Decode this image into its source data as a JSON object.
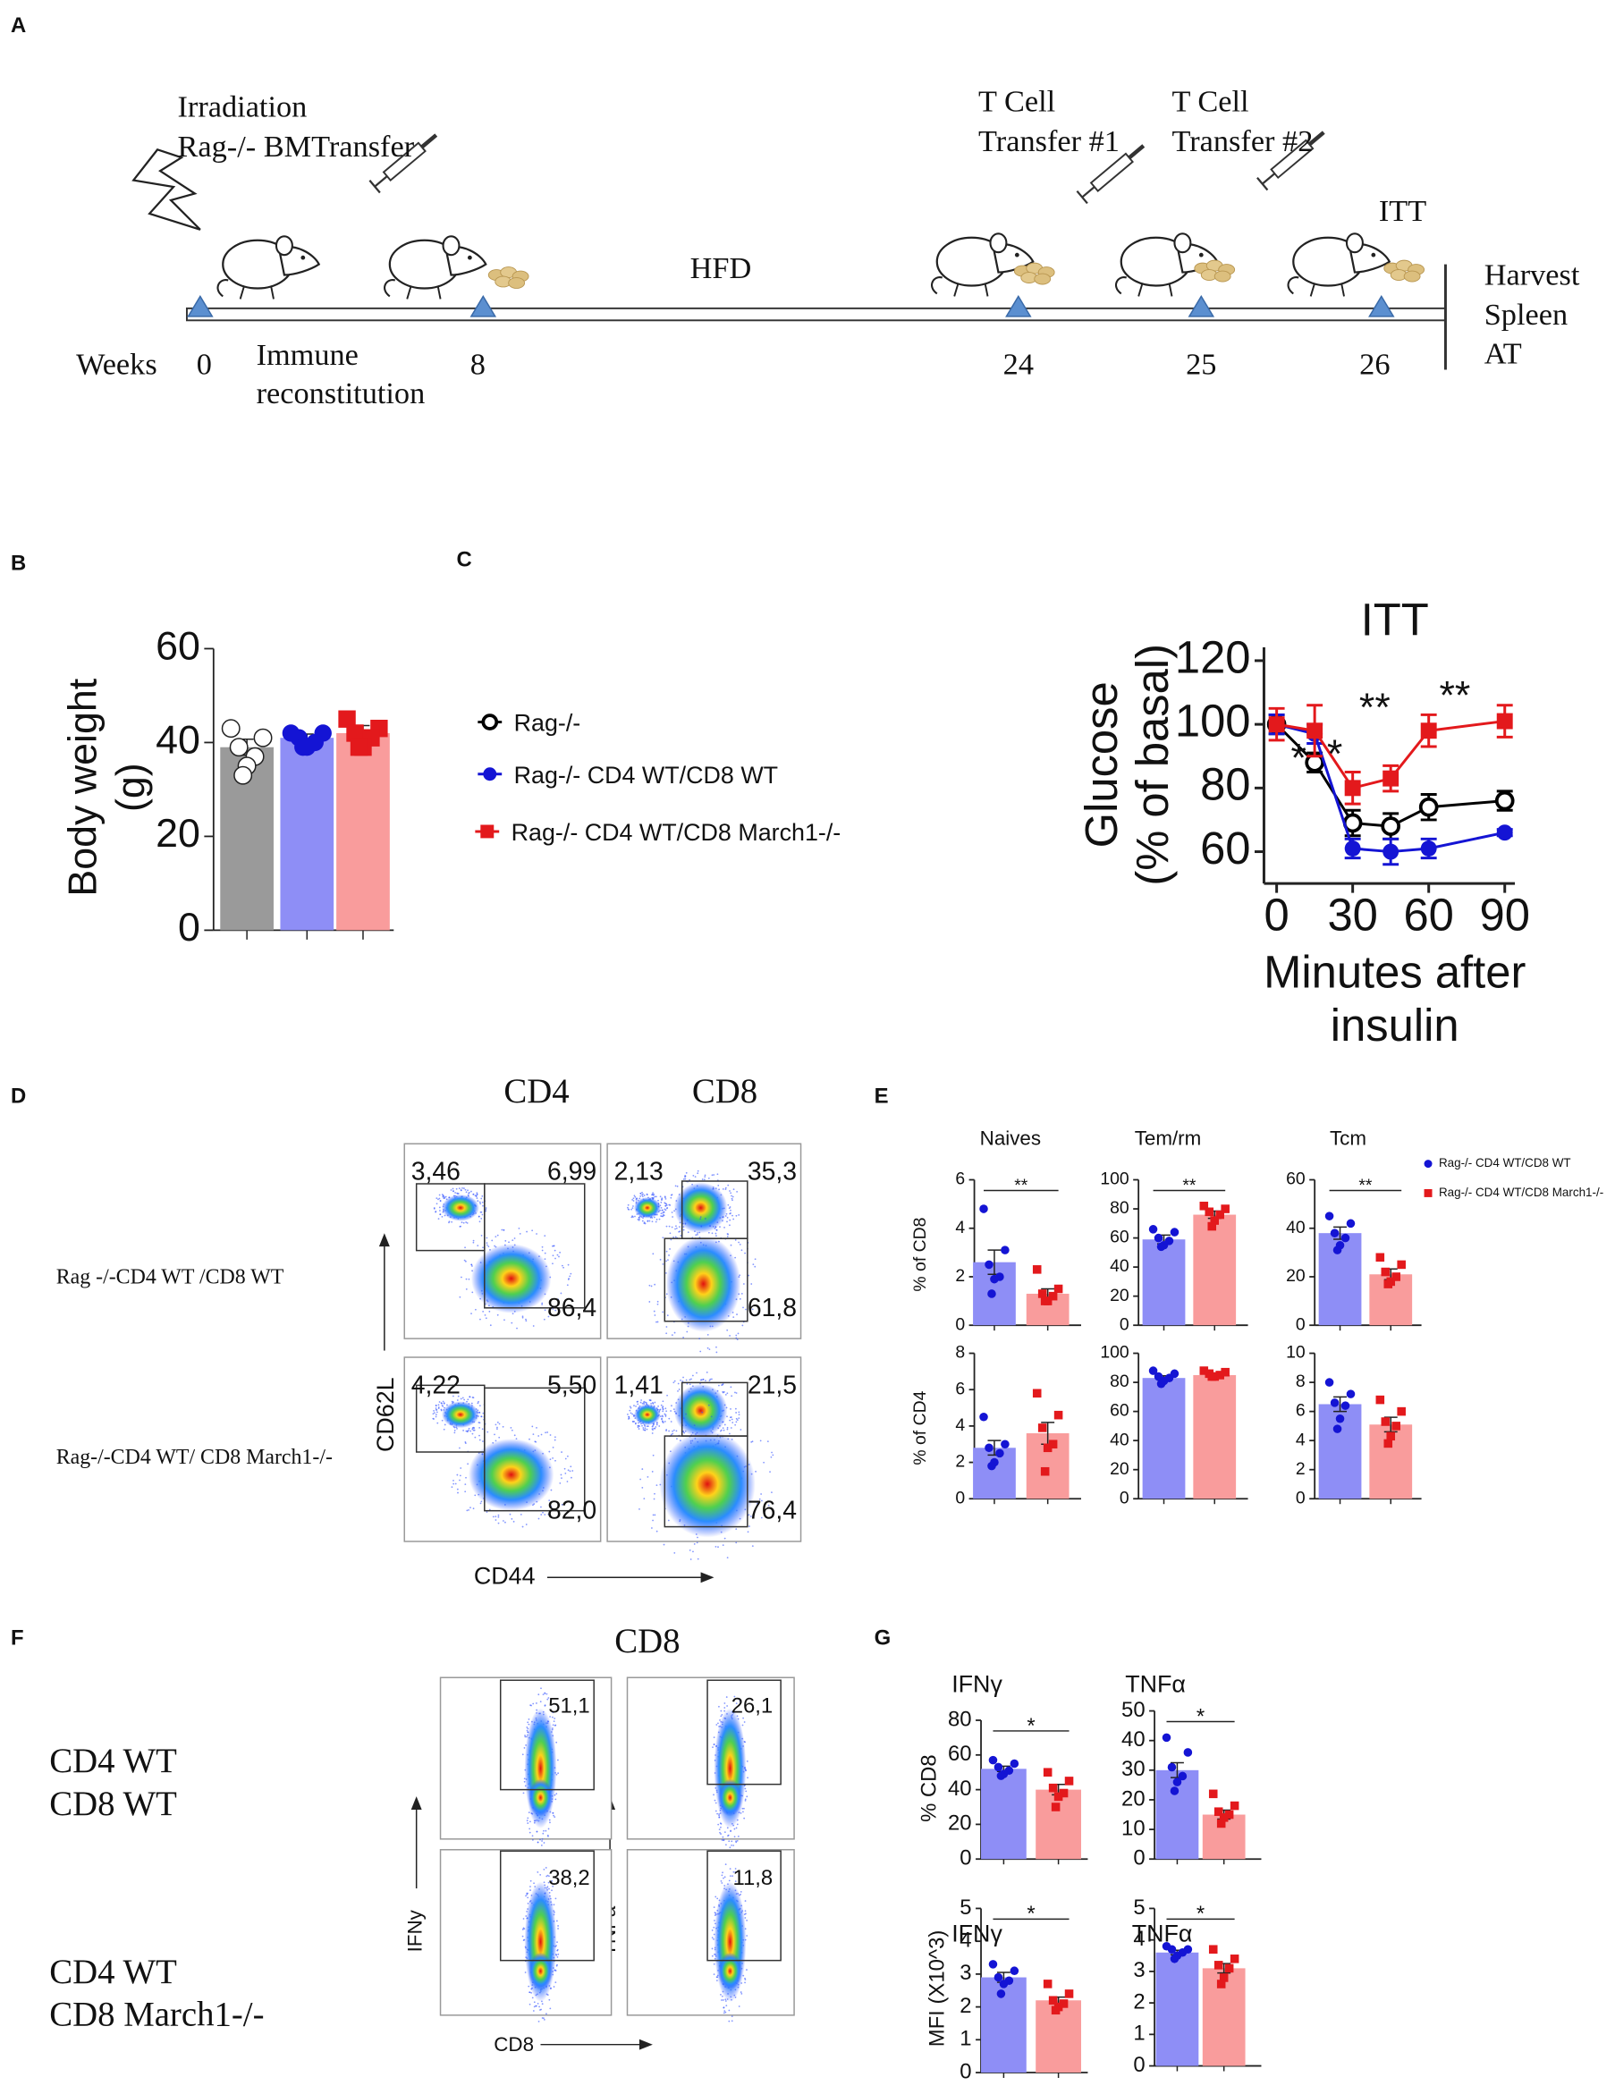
{
  "panels": {
    "a": "A",
    "b": "B",
    "c": "C",
    "d": "D",
    "e": "E",
    "f": "F",
    "g": "G"
  },
  "timeline": {
    "irradiation": [
      "Irradiation",
      "Rag-/- BMTransfer"
    ],
    "t_cell_1": [
      "T Cell",
      "Transfer #1"
    ],
    "t_cell_2": [
      "T Cell",
      "Transfer #2"
    ],
    "itt": "ITT",
    "hfd": "HFD",
    "harvest": [
      "Harvest",
      "Spleen",
      "AT"
    ],
    "weeks_label": "Weeks",
    "weeks": [
      "0",
      "8",
      "24",
      "25",
      "26"
    ],
    "immune": [
      "Immune",
      "reconstitution"
    ]
  },
  "flow_d": {
    "columns": [
      "CD4",
      "CD8"
    ],
    "rows": [
      "Rag -/-CD4 WT /CD8 WT",
      "Rag-/-CD4 WT/ CD8 March1-/-"
    ],
    "y_axis": "CD62L",
    "x_axis": "CD44",
    "plots": [
      [
        "3,46",
        "6,99",
        "86,4"
      ],
      [
        "2,13",
        "35,3",
        "61,8"
      ],
      [
        "4,22",
        "5,50",
        "82,0"
      ],
      [
        "1,41",
        "21,5",
        "76,4"
      ]
    ]
  },
  "flow_f": {
    "title": "CD8",
    "rows": [
      [
        "CD4 WT",
        "CD8 WT"
      ],
      [
        "CD4 WT",
        "CD8 March1-/-"
      ]
    ],
    "y_axes": [
      "IFNy",
      "TNFa"
    ],
    "x_axis": "CD8",
    "plots": [
      "51,1",
      "26,1",
      "38,2",
      "11,8"
    ]
  },
  "e_legend": [
    {
      "name": "Rag-/- CD4 WT/CD8 WT",
      "color": "#1414d4"
    },
    {
      "name": "Rag-/- CD4 WT/CD8 March1-/-",
      "color": "#e3191c"
    }
  ],
  "chart_data": [
    {
      "type": "bar",
      "ylabel": [
        "Body weight",
        "(g)"
      ],
      "categories": [
        null,
        null,
        null
      ],
      "values": [
        39,
        41,
        42
      ],
      "errors": [
        1.7,
        0.8,
        1.6
      ],
      "colors": [
        "#9a9a9a",
        "#8e8ef6",
        "#f99c9c"
      ],
      "point_colors": [
        "#ffffff",
        "#1414d4",
        "#e3191c"
      ],
      "markers": [
        "circle",
        "circle",
        "square"
      ],
      "points": [
        [
          43,
          41,
          39,
          37,
          35,
          33
        ],
        [
          42,
          42,
          41,
          40,
          39,
          39
        ],
        [
          45,
          43,
          42,
          41,
          39,
          39
        ]
      ],
      "ylim": [
        0,
        60
      ],
      "yticks": [
        0,
        20,
        40,
        60
      ]
    },
    {
      "type": "line",
      "title": "ITT",
      "ylabel": [
        "Glucose",
        "(% of basal)"
      ],
      "xlabel": [
        "Minutes after",
        "insulin"
      ],
      "x": [
        0,
        15,
        30,
        45,
        60,
        90
      ],
      "series": [
        {
          "name": "Rag-/-",
          "color": "#000000",
          "marker": "open-circle",
          "values": [
            100,
            88,
            69,
            68,
            74,
            76
          ],
          "errors": [
            3,
            3,
            4,
            4,
            4,
            3
          ]
        },
        {
          "name": "Rag-/- CD4 WT/CD8 WT",
          "color": "#1414d4",
          "marker": "circle",
          "values": [
            100,
            97,
            61,
            60,
            61,
            66
          ],
          "errors": [
            3,
            3,
            3,
            4,
            3,
            1
          ]
        },
        {
          "name": "Rag-/- CD4 WT/CD8 March1-/-",
          "color": "#e3191c",
          "marker": "square",
          "values": [
            100,
            98,
            80,
            83,
            98,
            101
          ],
          "errors": [
            5,
            8,
            5,
            4,
            5,
            5
          ]
        }
      ],
      "xlim": [
        -5,
        94
      ],
      "ylim": [
        50,
        120
      ],
      "xticks": [
        0,
        30,
        60,
        90
      ],
      "yticks": [
        60,
        80,
        100,
        120
      ],
      "annotations": [
        "*",
        "*",
        "**",
        "**"
      ]
    },
    {
      "type": "bar",
      "title": "Naives",
      "ylabel": [
        "% of CD8"
      ],
      "categories": [
        null,
        null
      ],
      "values": [
        2.6,
        1.3
      ],
      "errors": [
        0.5,
        0.2
      ],
      "colors": [
        "#8e8ef6",
        "#f99c9c"
      ],
      "point_colors": [
        "#1414d4",
        "#e3191c"
      ],
      "markers": [
        "circle",
        "square"
      ],
      "points": [
        [
          4.8,
          3.1,
          2.5,
          2.0,
          1.9,
          1.3
        ],
        [
          2.3,
          1.5,
          1.3,
          1.2,
          1.0,
          1.0
        ]
      ],
      "ylim": [
        0,
        6
      ],
      "yticks": [
        0,
        2,
        4,
        6
      ],
      "annotation": "**"
    },
    {
      "type": "bar",
      "title": "Tem/rm",
      "categories": [
        null,
        null
      ],
      "values": [
        59,
        76
      ],
      "errors": [
        3,
        2.5
      ],
      "colors": [
        "#8e8ef6",
        "#f99c9c"
      ],
      "point_colors": [
        "#1414d4",
        "#e3191c"
      ],
      "markers": [
        "circle",
        "square"
      ],
      "points": [
        [
          66,
          64,
          60,
          58,
          55,
          54
        ],
        [
          82,
          80,
          78,
          76,
          72,
          68
        ]
      ],
      "ylim": [
        0,
        100
      ],
      "yticks": [
        0,
        20,
        40,
        60,
        80,
        100
      ],
      "annotation": "**"
    },
    {
      "type": "bar",
      "title": "Tcm",
      "categories": [
        null,
        null
      ],
      "values": [
        38,
        21
      ],
      "errors": [
        2.5,
        2.2
      ],
      "colors": [
        "#8e8ef6",
        "#f99c9c"
      ],
      "point_colors": [
        "#1414d4",
        "#e3191c"
      ],
      "markers": [
        "circle",
        "square"
      ],
      "points": [
        [
          45,
          42,
          38,
          36,
          33,
          31
        ],
        [
          28,
          25,
          22,
          20,
          18,
          17
        ]
      ],
      "ylim": [
        0,
        60
      ],
      "yticks": [
        0,
        20,
        40,
        60
      ],
      "annotation": "**"
    },
    {
      "type": "bar",
      "ylabel": [
        "% of CD4"
      ],
      "categories": [
        null,
        null
      ],
      "values": [
        2.8,
        3.6
      ],
      "errors": [
        0.4,
        0.6
      ],
      "colors": [
        "#8e8ef6",
        "#f99c9c"
      ],
      "point_colors": [
        "#1414d4",
        "#e3191c"
      ],
      "markers": [
        "circle",
        "square"
      ],
      "points": [
        [
          4.5,
          3.0,
          2.8,
          2.5,
          2.0,
          1.8
        ],
        [
          5.8,
          4.6,
          3.9,
          3.0,
          2.8,
          1.5
        ]
      ],
      "ylim": [
        0,
        8
      ],
      "yticks": [
        0,
        2,
        4,
        6,
        8
      ]
    },
    {
      "type": "bar",
      "categories": [
        null,
        null
      ],
      "values": [
        83,
        85
      ],
      "errors": [
        1.5,
        1
      ],
      "colors": [
        "#8e8ef6",
        "#f99c9c"
      ],
      "point_colors": [
        "#1414d4",
        "#e3191c"
      ],
      "markers": [
        "circle",
        "square"
      ],
      "points": [
        [
          88,
          86,
          84,
          83,
          81,
          79
        ],
        [
          88,
          87,
          86,
          85,
          84,
          84
        ]
      ],
      "ylim": [
        0,
        100
      ],
      "yticks": [
        0,
        20,
        40,
        60,
        80,
        100
      ]
    },
    {
      "type": "bar",
      "categories": [
        null,
        null
      ],
      "values": [
        6.5,
        5.1
      ],
      "errors": [
        0.5,
        0.5
      ],
      "colors": [
        "#8e8ef6",
        "#f99c9c"
      ],
      "point_colors": [
        "#1414d4",
        "#e3191c"
      ],
      "markers": [
        "circle",
        "square"
      ],
      "points": [
        [
          8,
          7.2,
          6.6,
          6.4,
          5.5,
          4.8
        ],
        [
          6.8,
          6.0,
          5.3,
          5.0,
          4.3,
          3.8
        ]
      ],
      "ylim": [
        0,
        10
      ],
      "yticks": [
        0,
        2,
        4,
        6,
        8,
        10
      ]
    },
    {
      "type": "bar",
      "title": "IFNγ",
      "ylabel": [
        "% CD8"
      ],
      "categories": [
        null,
        null
      ],
      "values": [
        52,
        40
      ],
      "errors": [
        1.5,
        3
      ],
      "colors": [
        "#8e8ef6",
        "#f99c9c"
      ],
      "point_colors": [
        "#1414d4",
        "#e3191c"
      ],
      "markers": [
        "circle",
        "square"
      ],
      "points": [
        [
          57,
          55,
          53,
          51,
          49,
          48
        ],
        [
          50,
          45,
          41,
          38,
          36,
          30
        ]
      ],
      "ylim": [
        0,
        80
      ],
      "yticks": [
        0,
        20,
        40,
        60,
        80
      ],
      "annotation": "*"
    },
    {
      "type": "bar",
      "title": "TNFα",
      "categories": [
        null,
        null
      ],
      "values": [
        30,
        15
      ],
      "errors": [
        2.5,
        1.5
      ],
      "colors": [
        "#8e8ef6",
        "#f99c9c"
      ],
      "point_colors": [
        "#1414d4",
        "#e3191c"
      ],
      "markers": [
        "circle",
        "square"
      ],
      "points": [
        [
          41,
          36,
          31,
          28,
          26,
          23
        ],
        [
          22,
          18,
          16,
          15,
          14,
          12
        ]
      ],
      "ylim": [
        0,
        50
      ],
      "yticks": [
        0,
        10,
        20,
        30,
        40,
        50
      ],
      "annotation": "*"
    },
    {
      "type": "bar",
      "title": "IFNγ",
      "ylabel": [
        "MFI (X10^3)"
      ],
      "categories": [
        null,
        null
      ],
      "values": [
        2.9,
        2.2
      ],
      "errors": [
        0.15,
        0.1
      ],
      "colors": [
        "#8e8ef6",
        "#f99c9c"
      ],
      "point_colors": [
        "#1414d4",
        "#e3191c"
      ],
      "markers": [
        "circle",
        "square"
      ],
      "points": [
        [
          3.3,
          3.1,
          2.9,
          2.8,
          2.7,
          2.4
        ],
        [
          2.7,
          2.4,
          2.2,
          2.1,
          2.0,
          1.9
        ]
      ],
      "ylim": [
        0,
        5
      ],
      "yticks": [
        0,
        1,
        2,
        3,
        4,
        5
      ],
      "annotation": "*"
    },
    {
      "type": "bar",
      "title": "TNFα",
      "categories": [
        null,
        null
      ],
      "values": [
        3.6,
        3.1
      ],
      "errors": [
        0.07,
        0.15
      ],
      "colors": [
        "#8e8ef6",
        "#f99c9c"
      ],
      "point_colors": [
        "#1414d4",
        "#e3191c"
      ],
      "markers": [
        "circle",
        "square"
      ],
      "points": [
        [
          3.8,
          3.7,
          3.7,
          3.6,
          3.5,
          3.4
        ],
        [
          3.7,
          3.4,
          3.2,
          3.1,
          2.8,
          2.6
        ]
      ],
      "ylim": [
        0,
        5
      ],
      "yticks": [
        0,
        1,
        2,
        3,
        4,
        5
      ],
      "annotation": "*"
    }
  ]
}
